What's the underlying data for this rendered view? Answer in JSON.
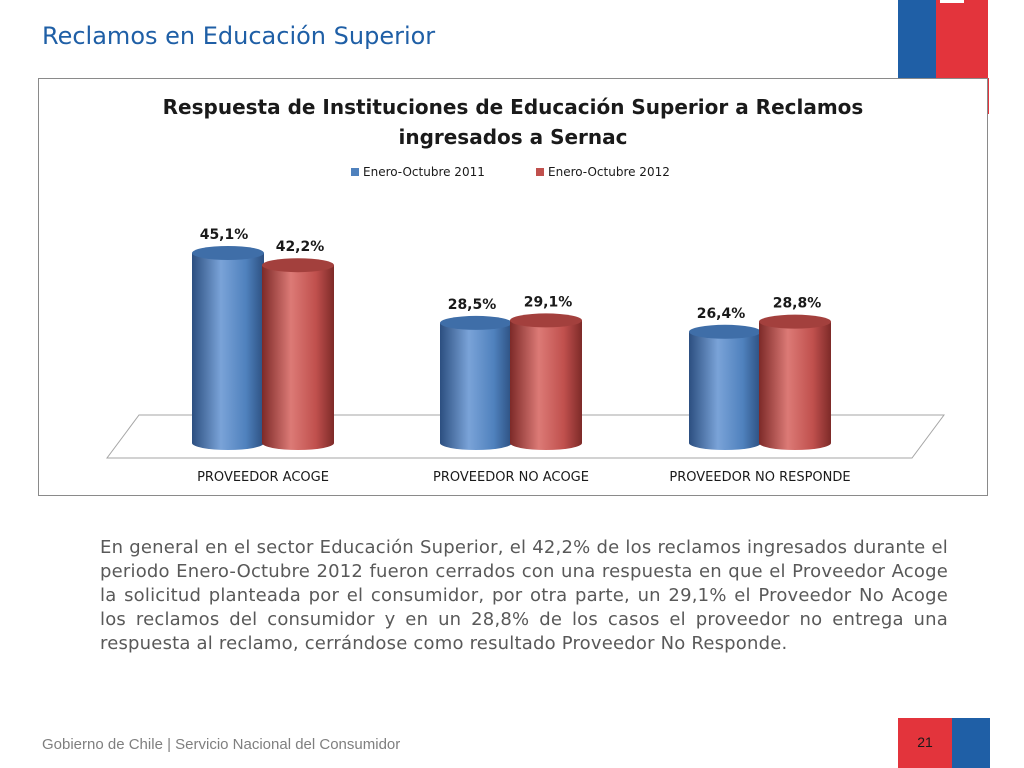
{
  "slide": {
    "title": "Reclamos en Educación Superior",
    "body": "En general en el sector Educación Superior, el 42,2% de los reclamos ingresados durante el periodo Enero-Octubre 2012 fueron cerrados con una respuesta en que el Proveedor Acoge la solicitud planteada por el consumidor, por otra parte, un 29,1% el Proveedor No Acoge los reclamos del consumidor y en un 28,8% de los casos el proveedor no entrega una respuesta al reclamo, cerrándose como resultado Proveedor No Responde.",
    "footer_org": "Gobierno de Chile | Servicio Nacional del Consumidor",
    "page_number": "21"
  },
  "colors": {
    "brand_blue": "#1f5fa6",
    "brand_red": "#e3343c",
    "series_2011": "#4f81bd",
    "series_2012": "#c0504d"
  },
  "chart_data": {
    "type": "bar",
    "title_lines": [
      "Respuesta de Instituciones de Educación Superior a Reclamos",
      "ingresados a Sernac"
    ],
    "categories": [
      "PROVEEDOR ACOGE",
      "PROVEEDOR NO ACOGE",
      "PROVEEDOR NO RESPONDE"
    ],
    "series": [
      {
        "name": "Enero-Octubre 2011",
        "values": [
          45.1,
          28.5,
          26.4
        ],
        "labels": [
          "45,1%",
          "28,5%",
          "26,4%"
        ]
      },
      {
        "name": "Enero-Octubre 2012",
        "values": [
          42.2,
          29.1,
          28.8
        ],
        "labels": [
          "42,2%",
          "29,1%",
          "28,8%"
        ]
      }
    ],
    "ylim": [
      0,
      50
    ],
    "legend_position": "top",
    "grid": false,
    "style": "3d-cylinder"
  }
}
